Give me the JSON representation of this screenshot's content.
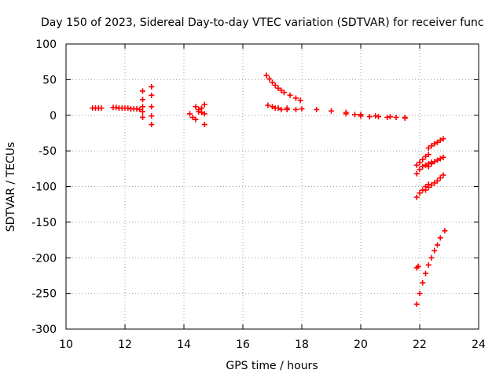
{
  "chart_data": {
    "type": "scatter",
    "title": "Day 150 of 2023, Sidereal Day-to-day VTEC variation (SDTVAR) for receiver func",
    "xlabel": "GPS time / hours",
    "ylabel": "SDTVAR / TECUs",
    "xlim": [
      10,
      24
    ],
    "ylim": [
      -300,
      100
    ],
    "xticks": [
      10,
      12,
      14,
      16,
      18,
      20,
      22,
      24
    ],
    "yticks": [
      -300,
      -250,
      -200,
      -150,
      -100,
      -50,
      0,
      50,
      100
    ],
    "xtick_labels": [
      "10",
      "12",
      "14",
      "16",
      "18",
      "20",
      "22",
      "24"
    ],
    "ytick_labels": [
      "-300",
      "-250",
      "-200",
      "-150",
      "-100",
      "-50",
      "0",
      "50",
      "100"
    ],
    "grid": true,
    "marker": "+",
    "color": "#ff0000",
    "series": [
      {
        "name": "s1",
        "x": [
          10.9,
          11.0,
          11.1,
          11.2
        ],
        "y": [
          10,
          10,
          10,
          10
        ]
      },
      {
        "name": "s2",
        "x": [
          11.6,
          11.7,
          11.8,
          11.9,
          12.0,
          12.1,
          12.2,
          12.3,
          12.4,
          12.5
        ],
        "y": [
          11,
          11,
          10,
          10,
          10,
          10,
          9,
          9,
          9,
          8
        ]
      },
      {
        "name": "s3",
        "x": [
          12.6,
          12.6,
          12.6,
          12.6,
          12.6
        ],
        "y": [
          34,
          22,
          12,
          5,
          -3
        ]
      },
      {
        "name": "s4",
        "x": [
          12.9,
          12.9,
          12.9,
          12.9,
          12.9
        ],
        "y": [
          40,
          28,
          12,
          -1,
          -13
        ]
      },
      {
        "name": "s5",
        "x": [
          14.2,
          14.3,
          14.4,
          14.5,
          14.6,
          14.7
        ],
        "y": [
          2,
          -3,
          -6,
          5,
          10,
          2
        ]
      },
      {
        "name": "s6",
        "x": [
          14.4,
          14.5,
          14.6,
          14.7,
          14.7
        ],
        "y": [
          12,
          8,
          4,
          15,
          -13
        ]
      },
      {
        "name": "s7",
        "x": [
          16.8,
          16.9,
          17.0,
          17.1,
          17.2,
          17.3,
          17.4,
          17.6,
          17.8,
          17.95
        ],
        "y": [
          56,
          51,
          46,
          42,
          38,
          35,
          32,
          28,
          24,
          21
        ]
      },
      {
        "name": "s8",
        "x": [
          16.85,
          17.0,
          17.2,
          17.5,
          18.0,
          18.5,
          19.0,
          19.5,
          20.0,
          20.5,
          21.0,
          21.5
        ],
        "y": [
          14,
          12,
          10,
          10,
          9,
          8,
          6,
          4,
          1,
          -1,
          -2,
          -3
        ]
      },
      {
        "name": "s9",
        "x": [
          17.1,
          17.3,
          17.5,
          17.8
        ],
        "y": [
          10,
          8,
          8,
          8
        ]
      },
      {
        "name": "s10",
        "x": [
          19.5,
          19.8,
          20.0,
          20.3,
          20.6,
          20.9,
          21.2,
          21.5
        ],
        "y": [
          2,
          1,
          -1,
          -2,
          -2,
          -3,
          -3,
          -4
        ]
      },
      {
        "name": "s11",
        "x": [
          21.9,
          22.0,
          22.1,
          22.2,
          22.3
        ],
        "y": [
          -70,
          -66,
          -62,
          -58,
          -55
        ]
      },
      {
        "name": "s12",
        "x": [
          21.9,
          22.0,
          22.1,
          22.2,
          22.3,
          22.4
        ],
        "y": [
          -82,
          -76,
          -72,
          -70,
          -68,
          -66
        ]
      },
      {
        "name": "s13",
        "x": [
          22.3,
          22.4,
          22.5,
          22.6,
          22.7,
          22.8
        ],
        "y": [
          -46,
          -43,
          -40,
          -38,
          -35,
          -33
        ]
      },
      {
        "name": "s14",
        "x": [
          22.3,
          22.4,
          22.5,
          22.6,
          22.7,
          22.8
        ],
        "y": [
          -72,
          -68,
          -65,
          -63,
          -61,
          -59
        ]
      },
      {
        "name": "s15",
        "x": [
          21.9,
          22.0,
          22.1,
          22.2,
          22.3
        ],
        "y": [
          -115,
          -109,
          -105,
          -100,
          -97
        ]
      },
      {
        "name": "s16",
        "x": [
          22.2,
          22.3,
          22.4,
          22.5,
          22.6,
          22.7,
          22.8
        ],
        "y": [
          -105,
          -101,
          -98,
          -95,
          -92,
          -88,
          -84
        ]
      },
      {
        "name": "s17",
        "x": [
          21.9,
          21.95
        ],
        "y": [
          -214,
          -212
        ]
      },
      {
        "name": "s18",
        "x": [
          21.9,
          22.0,
          22.1,
          22.2,
          22.3,
          22.4,
          22.5,
          22.6,
          22.7,
          22.85
        ],
        "y": [
          -265,
          -250,
          -235,
          -222,
          -210,
          -200,
          -190,
          -182,
          -172,
          -162
        ]
      }
    ]
  }
}
